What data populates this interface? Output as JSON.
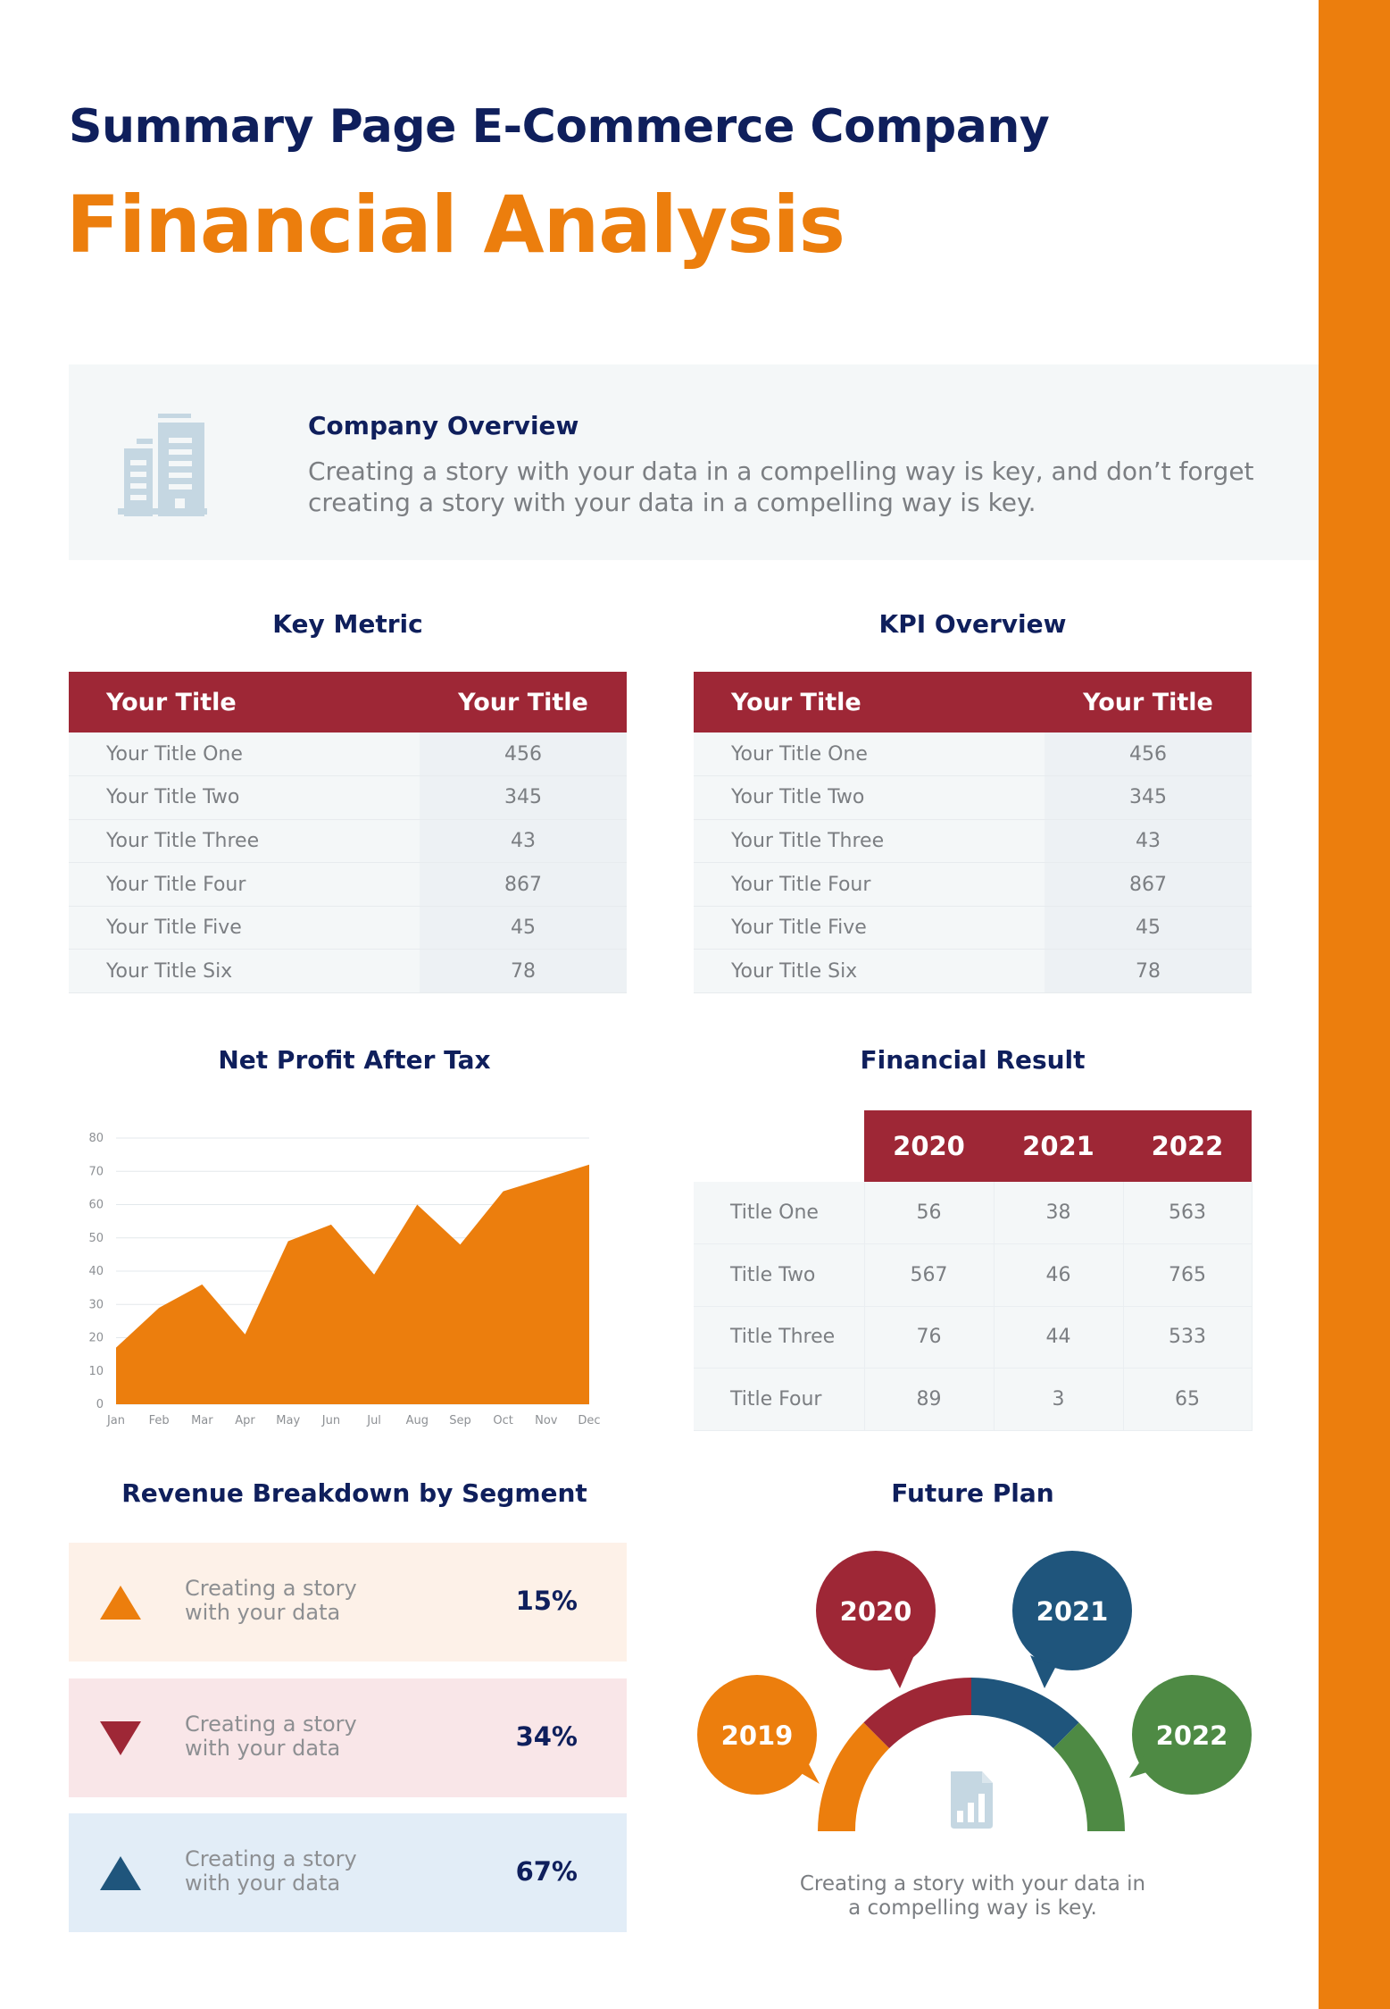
{
  "header": {
    "title": "Summary Page E-Commerce Company",
    "subtitle": "Financial Analysis"
  },
  "colors": {
    "navy": "#0f1f5c",
    "orange": "#ec7e0d",
    "crimson": "#9e2736",
    "blue": "#1f557c",
    "green": "#4e8a44",
    "icon_light_blue": "#c5d7e2"
  },
  "overview": {
    "icon": "building-icon",
    "title": "Company Overview",
    "text": "Creating a story with your data in a compelling way is key, and don’t forget creating a story with your data in a compelling way is key."
  },
  "key_metric": {
    "title": "Key Metric",
    "headers": [
      "Your Title",
      "Your Title"
    ],
    "rows": [
      {
        "label": "Your Title One",
        "value": "456"
      },
      {
        "label": "Your Title Two",
        "value": "345"
      },
      {
        "label": "Your Title Three",
        "value": "43"
      },
      {
        "label": "Your Title Four",
        "value": "867"
      },
      {
        "label": "Your Title Five",
        "value": "45"
      },
      {
        "label": "Your Title Six",
        "value": "78"
      }
    ]
  },
  "kpi_overview": {
    "title": "KPI Overview",
    "headers": [
      "Your Title",
      "Your Title"
    ],
    "rows": [
      {
        "label": "Your Title One",
        "value": "456"
      },
      {
        "label": "Your Title Two",
        "value": "345"
      },
      {
        "label": "Your Title Three",
        "value": "43"
      },
      {
        "label": "Your Title Four",
        "value": "867"
      },
      {
        "label": "Your Title Five",
        "value": "45"
      },
      {
        "label": "Your Title Six",
        "value": "78"
      }
    ]
  },
  "net_profit": {
    "title": "Net Profit After Tax"
  },
  "chart_data": {
    "type": "area",
    "title": "Net Profit After Tax",
    "categories": [
      "Jan",
      "Feb",
      "Mar",
      "Apr",
      "May",
      "Jun",
      "Jul",
      "Aug",
      "Sep",
      "Oct",
      "Nov",
      "Dec"
    ],
    "values": [
      17,
      29,
      36,
      21,
      49,
      54,
      39,
      60,
      48,
      64,
      68,
      72
    ],
    "yticks": [
      0,
      10,
      20,
      30,
      40,
      50,
      60,
      70,
      80
    ],
    "ylim": [
      0,
      80
    ],
    "xlabel": "",
    "ylabel": "",
    "grid": true,
    "legend": "none",
    "color": "#ec7e0d"
  },
  "financial_result": {
    "title": "Financial Result",
    "years": [
      "2020",
      "2021",
      "2022"
    ],
    "rows": [
      {
        "label": "Title One",
        "values": [
          "56",
          "38",
          "563"
        ]
      },
      {
        "label": "Title Two",
        "values": [
          "567",
          "46",
          "765"
        ]
      },
      {
        "label": "Title Three",
        "values": [
          "76",
          "44",
          "533"
        ]
      },
      {
        "label": "Title Four",
        "values": [
          "89",
          "3",
          "65"
        ]
      }
    ]
  },
  "revenue": {
    "title": "Revenue Breakdown by Segment",
    "segments": [
      {
        "icon": "triangle-up-icon",
        "text_line1": "Creating a story",
        "text_line2": "with your data",
        "percent": "15%",
        "color": "#ec7e0d",
        "bg": "#fdf1e8"
      },
      {
        "icon": "triangle-down-icon",
        "text_line1": "Creating a story",
        "text_line2": "with your data",
        "percent": "34%",
        "color": "#9e2736",
        "bg": "#f9e6e8"
      },
      {
        "icon": "triangle-up-icon",
        "text_line1": "Creating a story",
        "text_line2": "with your data",
        "percent": "67%",
        "color": "#1f557c",
        "bg": "#e2edf7"
      }
    ]
  },
  "future_plan": {
    "title": "Future Plan",
    "milestones": [
      {
        "year": "2019",
        "color": "#ec7e0d"
      },
      {
        "year": "2020",
        "color": "#9e2736"
      },
      {
        "year": "2021",
        "color": "#1f557c"
      },
      {
        "year": "2022",
        "color": "#4e8a44"
      }
    ],
    "center_icon": "report-chart-icon",
    "caption_line1": "Creating a story with your data in",
    "caption_line2": "a compelling way is key."
  }
}
